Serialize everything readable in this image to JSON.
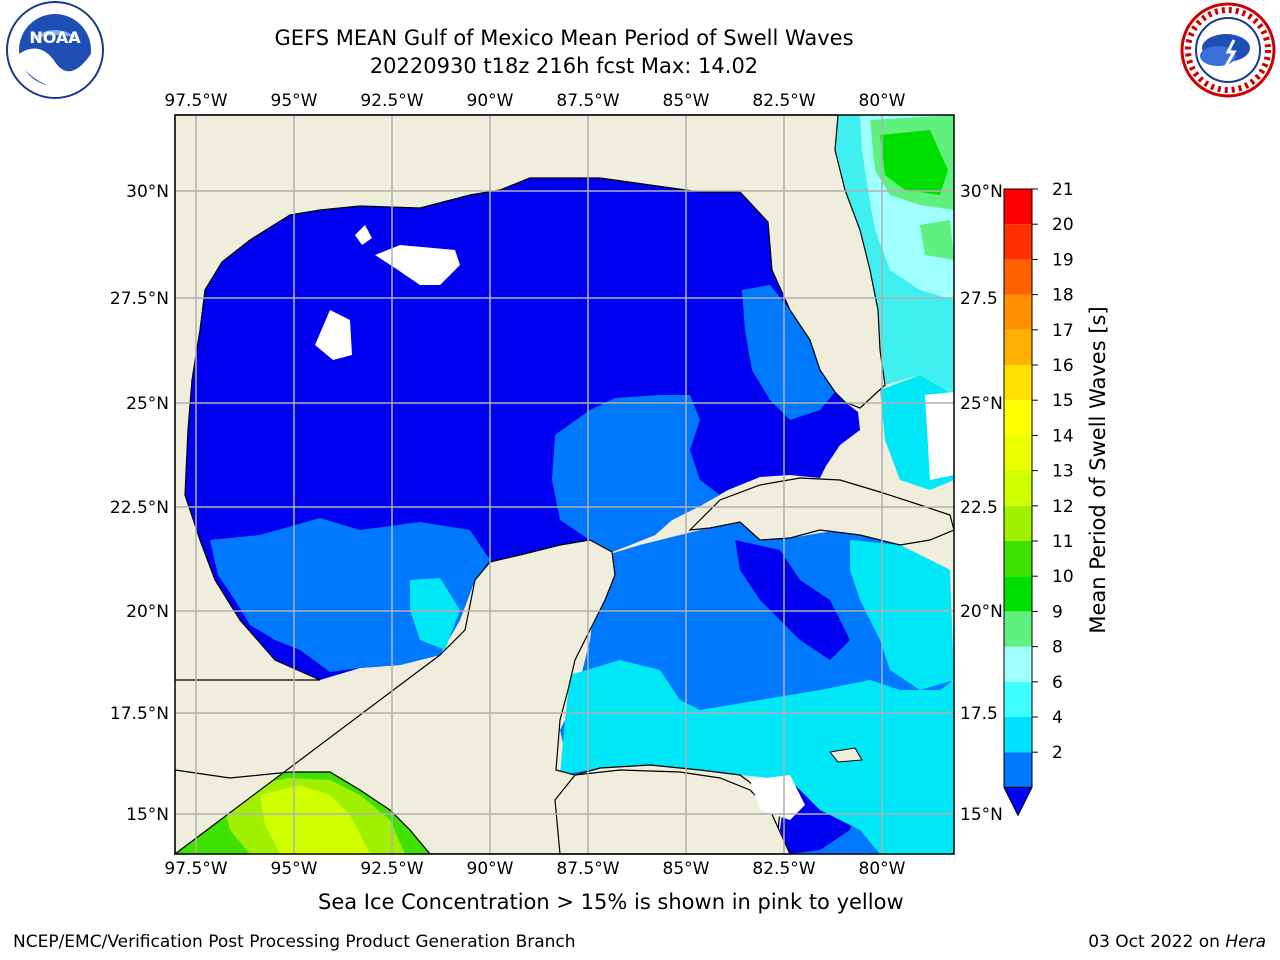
{
  "title": "GEFS MEAN Gulf of Mexico Mean Period of Swell Waves",
  "subtitle": "20220930 t18z 216h fcst   Max: 14.02",
  "caption": "Sea Ice Concentration > 15% is shown in pink to yellow",
  "footer_left": "NCEP/EMC/Verification Post Processing Product Generation Branch",
  "footer_right_date": "03 Oct 2022 on ",
  "footer_right_host": "Hera",
  "logos": {
    "left": "noaa-logo",
    "right": "nws-logo"
  },
  "map": {
    "lon_ticks": [
      "97.5°W",
      "95°W",
      "92.5°W",
      "90°W",
      "87.5°W",
      "85°W",
      "82.5°W",
      "80°W"
    ],
    "lat_ticks_left": [
      "30°N",
      "27.5°N",
      "25°N",
      "22.5°N",
      "20°N",
      "17.5°N",
      "15°N"
    ],
    "lat_ticks_right": [
      "30°N",
      "27.5",
      "25°N",
      "22.5",
      "20°N",
      "17.5",
      "15°N"
    ],
    "colors": {
      "land": "#efeddc",
      "ocean_deep": "#0000f0",
      "ocean_2_4": "#0078ff",
      "ocean_4_6": "#00e8f8",
      "ocean_6_8": "#40f0f0"
    }
  },
  "colorbar": {
    "label": "Mean Period of Swell Waves [s]",
    "ticks": [
      "21",
      "20",
      "19",
      "18",
      "17",
      "16",
      "15",
      "14",
      "13",
      "12",
      "11",
      "10",
      "9",
      "8",
      "6",
      "4",
      "2"
    ],
    "colors": [
      "#0078ff",
      "#00e0ff",
      "#40ffff",
      "#a0ffff",
      "#60f080",
      "#00e000",
      "#40e000",
      "#a0f000",
      "#d0ff00",
      "#eaff00",
      "#ffff00",
      "#ffe000",
      "#ffb000",
      "#ff9000",
      "#ff6000",
      "#ff3000",
      "#ff0000"
    ],
    "under_color": "#0000ff"
  }
}
